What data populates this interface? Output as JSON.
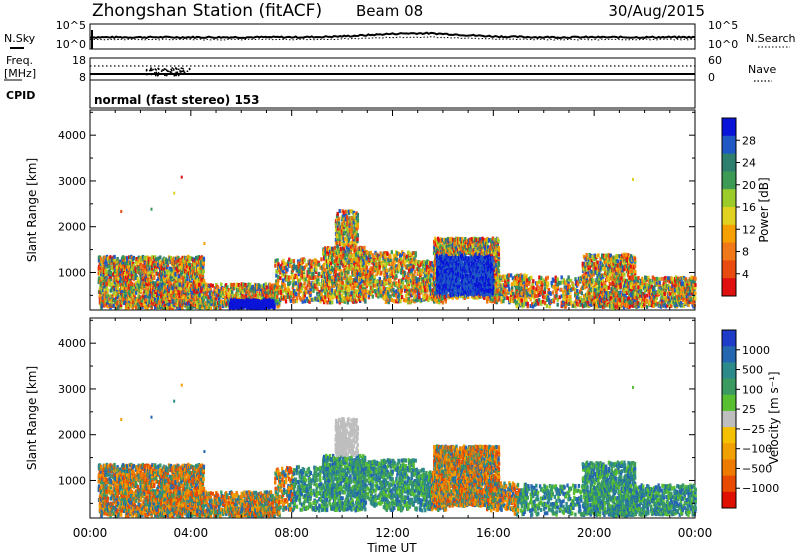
{
  "header": {
    "station": "Zhongshan Station (fitACF)",
    "beam": "Beam 08",
    "date": "30/Aug/2015"
  },
  "noise_panel": {
    "left_label": "N.Sky",
    "right_label": "N.Search",
    "left_ticks": [
      "10^5",
      "10^0"
    ],
    "right_ticks": [
      "10^5",
      "10^0"
    ]
  },
  "freq_panel": {
    "left_label_1": "Freq.",
    "left_label_2": "[MHz]",
    "right_label": "Nave",
    "left_ticks": [
      "18",
      "8"
    ],
    "right_ticks": [
      "60",
      "0"
    ]
  },
  "cpid": {
    "label": "CPID",
    "value": "normal (fast stereo) 153"
  },
  "chart_data": [
    {
      "type": "heatmap",
      "panel": "power",
      "ylabel": "Slant Range [km]",
      "xlabel": "",
      "xlim": [
        0,
        24
      ],
      "ylim": [
        180,
        4550
      ],
      "yticks": [
        "1000",
        "2000",
        "3000",
        "4000"
      ],
      "colorbar_label": "Power [dB]",
      "colorbar_ticks": [
        "4",
        "8",
        "12",
        "16",
        "20",
        "24",
        "28"
      ],
      "colorbar_colors": [
        "#0a14d8",
        "#1f58c4",
        "#2e7f6e",
        "#3d9a55",
        "#9ccc2a",
        "#e0d21e",
        "#f5a000",
        "#f07818",
        "#e84a10",
        "#e01010"
      ]
    },
    {
      "type": "heatmap",
      "panel": "velocity",
      "ylabel": "Slant Range [km]",
      "xlabel": "Time UT",
      "xlim": [
        0,
        24
      ],
      "ylim": [
        180,
        4550
      ],
      "xticks": [
        "00:00",
        "04:00",
        "08:00",
        "12:00",
        "16:00",
        "20:00",
        "00:00"
      ],
      "yticks": [
        "1000",
        "2000",
        "3000",
        "4000"
      ],
      "colorbar_label": "Velocity [m s⁻¹]",
      "colorbar_ticks": [
        "1000",
        "500",
        "100",
        "25",
        "−25",
        "−100",
        "−500",
        "−1000"
      ],
      "colorbar_colors": [
        "#1e3cc8",
        "#2466b0",
        "#2c8a8a",
        "#3a9a60",
        "#58c030",
        "#bebebe",
        "#f4c000",
        "#f0a000",
        "#ee7a00",
        "#e84a00",
        "#e01000"
      ]
    }
  ]
}
